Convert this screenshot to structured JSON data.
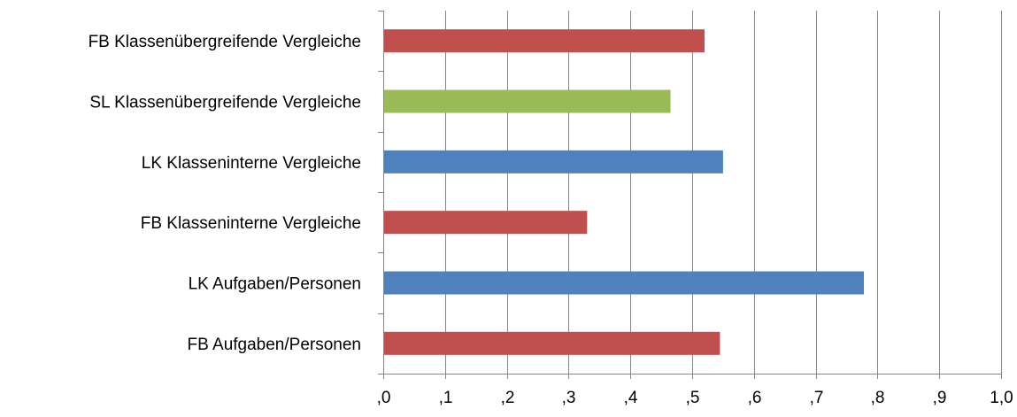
{
  "chart_data": {
    "type": "bar",
    "orientation": "horizontal",
    "categories": [
      "FB Klassenübergreifende Vergleiche",
      "SL Klassenübergreifende Vergleiche",
      "LK Klasseninterne Vergleiche",
      "FB Klasseninterne Vergleiche",
      "LK Aufgaben/Personen",
      "FB Aufgaben/Personen"
    ],
    "values": [
      0.52,
      0.465,
      0.55,
      0.33,
      0.778,
      0.545
    ],
    "bar_colors": [
      "#C0504D",
      "#9BBB59",
      "#4F81BD",
      "#C0504D",
      "#4F81BD",
      "#C0504D"
    ],
    "xlim": [
      0,
      1.0
    ],
    "x_ticks": [
      0,
      0.1,
      0.2,
      0.3,
      0.4,
      0.5,
      0.6,
      0.7,
      0.8,
      0.9,
      1.0
    ],
    "x_tick_labels": [
      ",0",
      ",1",
      ",2",
      ",3",
      ",4",
      ",5",
      ",6",
      ",7",
      ",8",
      ",9",
      "1,0"
    ],
    "grid": "vertical",
    "title": "",
    "xlabel": "",
    "ylabel": ""
  },
  "colors": {
    "gridline": "#868686",
    "axis": "#868686"
  }
}
